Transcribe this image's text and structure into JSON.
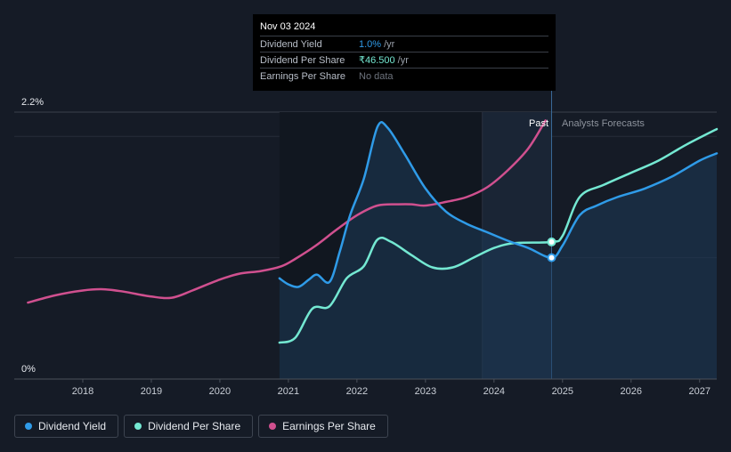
{
  "tooltip": {
    "date": "Nov 03 2024",
    "rows": [
      {
        "label": "Dividend Yield",
        "value": "1.0%",
        "unit": "/yr"
      },
      {
        "label": "Dividend Per Share",
        "value": "₹46.500",
        "unit": "/yr"
      },
      {
        "label": "Earnings Per Share",
        "value": "No data",
        "unit": ""
      }
    ]
  },
  "legend": [
    {
      "label": "Dividend Yield",
      "color": "#2f9be8"
    },
    {
      "label": "Dividend Per Share",
      "color": "#74e8d2"
    },
    {
      "label": "Earnings Per Share",
      "color": "#d0508f"
    }
  ],
  "chart_data": {
    "type": "line",
    "y_ticks": [
      "2.2%",
      "0%"
    ],
    "ylim": [
      0,
      2.2
    ],
    "x_ticks": [
      "2018",
      "2019",
      "2020",
      "2021",
      "2022",
      "2023",
      "2024",
      "2025",
      "2026",
      "2027"
    ],
    "xlim": [
      2017.0,
      2027.25
    ],
    "past_label": "Past",
    "forecast_label": "Analysts Forecasts",
    "current_date": 2024.84,
    "forecast_band_start": 2023.83,
    "series": [
      {
        "name": "Dividend Yield",
        "color": "#2f9be8",
        "unit": "%",
        "x": [
          2020.87,
          2021.0,
          2021.15,
          2021.3,
          2021.42,
          2021.6,
          2021.75,
          2021.9,
          2022.1,
          2022.3,
          2022.45,
          2022.7,
          2023.0,
          2023.3,
          2023.6,
          2023.9,
          2024.2,
          2024.5,
          2024.84,
          2025.0,
          2025.25,
          2025.5,
          2025.8,
          2026.2,
          2026.6,
          2027.0,
          2027.25
        ],
        "y": [
          0.83,
          0.78,
          0.76,
          0.82,
          0.86,
          0.8,
          1.05,
          1.35,
          1.65,
          2.08,
          2.07,
          1.85,
          1.57,
          1.38,
          1.28,
          1.21,
          1.14,
          1.08,
          1.0,
          1.1,
          1.35,
          1.43,
          1.5,
          1.57,
          1.67,
          1.8,
          1.86
        ],
        "marker_value": 1.0
      },
      {
        "name": "Dividend Per Share",
        "color": "#74e8d2",
        "unit": "₹",
        "x": [
          2020.87,
          2021.1,
          2021.35,
          2021.6,
          2021.85,
          2022.1,
          2022.3,
          2022.5,
          2022.8,
          2023.1,
          2023.4,
          2023.7,
          2024.0,
          2024.3,
          2024.84,
          2025.0,
          2025.25,
          2025.6,
          2026.0,
          2026.4,
          2026.8,
          2027.25
        ],
        "y": [
          0.3,
          0.34,
          0.58,
          0.6,
          0.83,
          0.93,
          1.15,
          1.13,
          1.02,
          0.92,
          0.92,
          1.0,
          1.08,
          1.12,
          1.13,
          1.18,
          1.5,
          1.6,
          1.7,
          1.8,
          1.93,
          2.06
        ],
        "marker_value": 1.13
      },
      {
        "name": "Earnings Per Share",
        "color": "#d0508f",
        "unit": "₹",
        "x": [
          2017.2,
          2017.6,
          2018.0,
          2018.3,
          2018.6,
          2019.0,
          2019.3,
          2019.6,
          2020.0,
          2020.3,
          2020.6,
          2020.9,
          2021.1,
          2021.4,
          2021.7,
          2022.0,
          2022.3,
          2022.6,
          2022.8,
          2023.0,
          2023.3,
          2023.6,
          2023.9,
          2024.2,
          2024.5,
          2024.75
        ],
        "y": [
          0.63,
          0.69,
          0.73,
          0.74,
          0.72,
          0.68,
          0.67,
          0.73,
          0.82,
          0.87,
          0.89,
          0.93,
          0.99,
          1.1,
          1.23,
          1.35,
          1.43,
          1.44,
          1.44,
          1.43,
          1.46,
          1.5,
          1.58,
          1.72,
          1.9,
          2.13
        ]
      }
    ]
  }
}
